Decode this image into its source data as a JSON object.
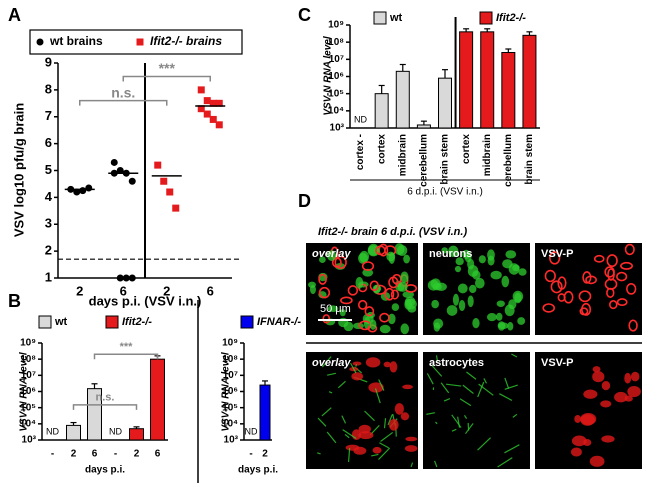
{
  "chart_data": [
    {
      "panel": "A",
      "type": "scatter",
      "categories": [
        "2",
        "6",
        "2",
        "6"
      ],
      "series": [
        {
          "name": "wt brains",
          "color": "#000000",
          "marker": "circle",
          "values": [
            [
              4.3,
              4.2,
              4.25,
              4.35
            ],
            [
              5.3,
              5.0,
              4.9,
              4.6,
              4.9,
              1.0,
              1.0,
              1.0
            ],
            null,
            null
          ],
          "means": [
            4.3,
            4.9,
            null,
            null
          ]
        },
        {
          "name": "Ifit2-/- brains",
          "color": "#e41a1c",
          "marker": "square",
          "values": [
            null,
            null,
            [
              5.2,
              4.6,
              4.2,
              3.6
            ],
            [
              8.0,
              7.6,
              7.5,
              7.5,
              7.3,
              7.1,
              6.9,
              6.7
            ]
          ],
          "means": [
            null,
            null,
            4.8,
            7.4
          ]
        }
      ],
      "ylim": [
        1,
        9
      ],
      "yticks": [
        1,
        2,
        3,
        4,
        5,
        6,
        7,
        8,
        9
      ],
      "ylabel": "VSV log10 pfu/g brain",
      "xlabel": "days p.i. (VSV i.n.)",
      "reference_line": 1.7,
      "brackets": [
        {
          "label": "n.s.",
          "from": 0,
          "to": 2,
          "y": 7.6
        },
        {
          "label": "***",
          "from": 1,
          "to": 3,
          "y": 8.5
        }
      ]
    },
    {
      "panel": "B",
      "type": "bar",
      "log_y": true,
      "categories": [
        "-",
        "2",
        "6",
        "-",
        "2",
        "6"
      ],
      "series": [
        {
          "name": "wt",
          "color": "#d9d9d9",
          "values": [
            null,
            8000,
            1500000,
            null,
            null,
            null
          ],
          "errors": [
            null,
            4000,
            1500000,
            null,
            null,
            null
          ],
          "value_labels": [
            "ND",
            null,
            null,
            null,
            null,
            null
          ]
        },
        {
          "name": "Ifit2-/-",
          "color": "#e41a1c",
          "values": [
            null,
            null,
            null,
            null,
            5000,
            100000000
          ],
          "errors": [
            null,
            null,
            null,
            null,
            1500,
            60000000
          ],
          "value_labels": [
            null,
            null,
            null,
            "ND",
            null,
            null
          ]
        }
      ],
      "ylim": [
        1000,
        1000000000
      ],
      "yticks": [
        {
          "value": 1000,
          "label": "10³"
        },
        {
          "value": 10000,
          "label": "10⁴"
        },
        {
          "value": 100000,
          "label": "10⁵"
        },
        {
          "value": 1000000,
          "label": "10⁶"
        },
        {
          "value": 10000000,
          "label": "10⁷"
        },
        {
          "value": 100000000,
          "label": "10⁸"
        },
        {
          "value": 1000000000,
          "label": "10⁹"
        }
      ],
      "ylabel": "VSV-N RNA level",
      "xlabel": "days p.i.",
      "brackets": [
        {
          "label": "n.s.",
          "from": 1,
          "to": 4,
          "y": 150000
        },
        {
          "label": "***",
          "from": 2,
          "to": 5,
          "y": 200000000
        }
      ]
    },
    {
      "type": "bar",
      "log_y": true,
      "categories": [
        "-",
        "2"
      ],
      "series": [
        {
          "name": "IFNAR-/-",
          "color": "#0000ee",
          "values": [
            null,
            2500000
          ],
          "errors": [
            null,
            2000000
          ],
          "value_labels": [
            "ND",
            null
          ]
        }
      ],
      "ylim": [
        1000,
        1000000000
      ],
      "yticks": [
        {
          "value": 1000,
          "label": "10³"
        },
        {
          "value": 10000,
          "label": "10⁴"
        },
        {
          "value": 100000,
          "label": "10⁵"
        },
        {
          "value": 1000000,
          "label": "10⁶"
        },
        {
          "value": 10000000,
          "label": "10⁷"
        },
        {
          "value": 100000000,
          "label": "10⁸"
        },
        {
          "value": 1000000000,
          "label": "10⁹"
        }
      ],
      "ylabel": "VSV-N RNA level",
      "xlabel": "days p.i."
    },
    {
      "panel": "C",
      "type": "bar",
      "log_y": true,
      "categories": [
        "cortex -",
        "cortex",
        "midbrain",
        "cerebellum",
        "brain stem",
        "cortex",
        "midbrain",
        "cerebellum",
        "brain stem"
      ],
      "series": [
        {
          "name": "wt",
          "color": "#d9d9d9",
          "values": [
            null,
            100000,
            2000000,
            1500,
            800000,
            null,
            null,
            null,
            null
          ],
          "errors": [
            null,
            200000,
            3000000,
            1000,
            1700000,
            null,
            null,
            null,
            null
          ],
          "value_labels": [
            "ND",
            null,
            null,
            null,
            null,
            null,
            null,
            null,
            null
          ]
        },
        {
          "name": "Ifit2-/-",
          "color": "#e41a1c",
          "values": [
            null,
            null,
            null,
            null,
            null,
            400000000,
            400000000,
            25000000,
            250000000
          ],
          "errors": [
            null,
            null,
            null,
            null,
            null,
            200000000,
            200000000,
            15000000,
            150000000
          ]
        }
      ],
      "ylim": [
        1000,
        1000000000
      ],
      "yticks": [
        {
          "value": 1000,
          "label": "10³"
        },
        {
          "value": 10000,
          "label": "10⁴"
        },
        {
          "value": 100000,
          "label": "10⁵"
        },
        {
          "value": 1000000,
          "label": "10⁶"
        },
        {
          "value": 10000000,
          "label": "10⁷"
        },
        {
          "value": 100000000,
          "label": "10⁸"
        },
        {
          "value": 1000000000,
          "label": "10⁹"
        }
      ],
      "ylabel": "VSV-N RNA level",
      "xlabel": "6 d.p.i. (VSV i.n.)"
    }
  ],
  "image_panel": {
    "panel": "D",
    "title": "Ifit2-/- brain 6 d.p.i. (VSV i.n.)",
    "rows": [
      [
        "overlay",
        "neurons",
        "VSV-P"
      ],
      [
        "overlay",
        "astrocytes",
        "VSV-P"
      ]
    ],
    "scale_bar": "50 μm"
  }
}
